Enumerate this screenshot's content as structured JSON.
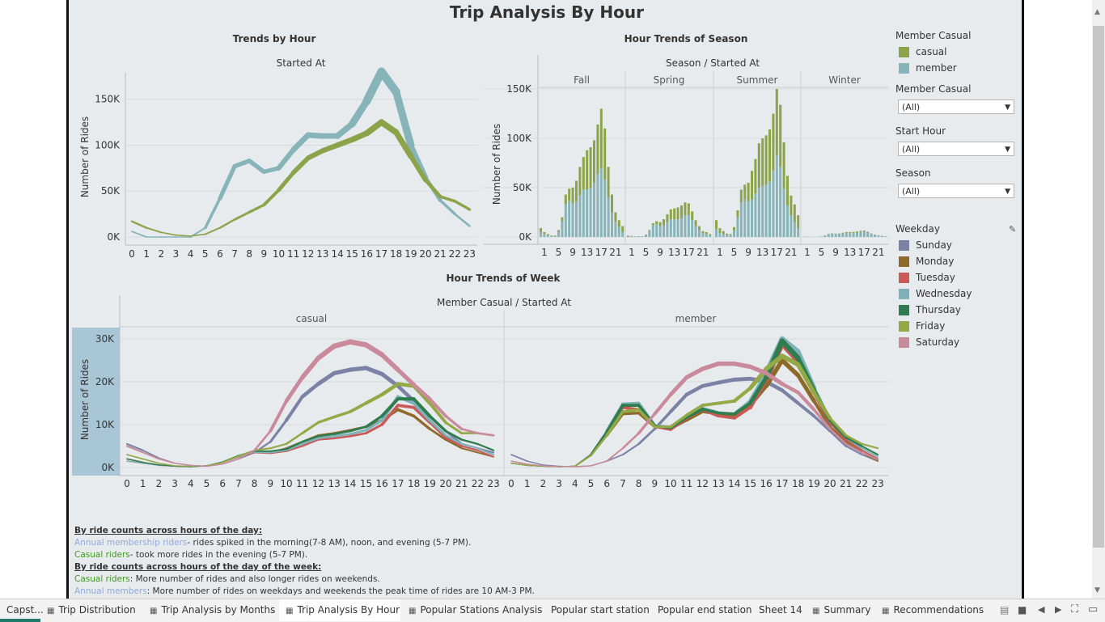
{
  "title": "Trip Analysis By Hour",
  "colors": {
    "casual": "#8da34a",
    "member": "#86b4b9",
    "bg": "#e8ebee"
  },
  "chart_data": [
    {
      "type": "line",
      "title": "Trends by Hour",
      "xlabel": "Started At",
      "ylabel": "Number of Rides",
      "x": [
        0,
        1,
        2,
        3,
        4,
        5,
        6,
        7,
        8,
        9,
        10,
        11,
        12,
        13,
        14,
        15,
        16,
        17,
        18,
        19,
        20,
        21,
        22,
        23
      ],
      "ylim": [
        0,
        185000
      ],
      "yticks": [
        "0K",
        "50K",
        "100K",
        "150K"
      ],
      "series": [
        {
          "name": "member",
          "values": [
            6000,
            0,
            0,
            0,
            0,
            10000,
            42000,
            77000,
            83000,
            71000,
            75000,
            95000,
            111000,
            110000,
            110000,
            123000,
            148000,
            180000,
            158000,
            100000,
            65000,
            40000,
            25000,
            12000
          ]
        },
        {
          "name": "casual",
          "values": [
            17000,
            10000,
            5000,
            2000,
            1000,
            3000,
            10000,
            19000,
            27000,
            35000,
            51000,
            70000,
            86000,
            94000,
            100000,
            106000,
            113000,
            125000,
            114000,
            88000,
            62000,
            44000,
            39000,
            30000
          ]
        }
      ]
    },
    {
      "type": "bar",
      "title": "Hour Trends of Season",
      "header": "Season / Started At",
      "ylabel": "Number of Rides",
      "ylim": [
        0,
        150000
      ],
      "yticks": [
        "0K",
        "50K",
        "100K",
        "150K"
      ],
      "panels": [
        {
          "name": "Fall",
          "member": [
            5000,
            3000,
            2000,
            1000,
            1000,
            5000,
            16000,
            33000,
            37000,
            34000,
            36000,
            42000,
            48000,
            48000,
            50000,
            55000,
            64000,
            70000,
            58000,
            40000,
            25000,
            15000,
            10000,
            5000
          ],
          "casual": [
            4000,
            2000,
            1000,
            500,
            500,
            2000,
            4000,
            10000,
            12000,
            16000,
            21000,
            29000,
            33000,
            40000,
            41000,
            43000,
            50000,
            60000,
            52000,
            31000,
            18000,
            10000,
            7000,
            6000
          ]
        },
        {
          "name": "Spring",
          "member": [
            1000,
            500,
            500,
            500,
            500,
            2000,
            6000,
            12000,
            13000,
            11000,
            12000,
            15000,
            18000,
            18000,
            18000,
            19000,
            22000,
            22000,
            17000,
            11000,
            7000,
            4000,
            3000,
            2000
          ],
          "casual": [
            500,
            500,
            200,
            200,
            200,
            500,
            1000,
            2000,
            3000,
            4000,
            6000,
            8000,
            10000,
            11000,
            12000,
            13000,
            13000,
            12000,
            9000,
            6000,
            4000,
            2000,
            2000,
            1000
          ]
        },
        {
          "name": "Summer",
          "member": [
            8000,
            4000,
            3000,
            2000,
            2000,
            7000,
            20000,
            35000,
            38000,
            36000,
            38000,
            44000,
            50000,
            52000,
            53000,
            56000,
            67000,
            83000,
            71000,
            49000,
            32000,
            22000,
            15000,
            9000
          ],
          "casual": [
            9000,
            5000,
            3000,
            1500,
            1000,
            3000,
            7000,
            13000,
            15000,
            19000,
            29000,
            35000,
            45000,
            48000,
            50000,
            53000,
            58000,
            67000,
            63000,
            47000,
            30000,
            20000,
            18000,
            13000
          ]
        },
        {
          "name": "Winter",
          "member": [
            300,
            200,
            100,
            100,
            100,
            500,
            1500,
            3000,
            3500,
            3000,
            3000,
            3500,
            4000,
            4000,
            4000,
            4500,
            5000,
            5500,
            4500,
            3000,
            2000,
            1500,
            1000,
            600
          ],
          "casual": [
            100,
            50,
            50,
            50,
            50,
            50,
            100,
            200,
            300,
            400,
            600,
            800,
            1000,
            1000,
            1100,
            1100,
            1200,
            1000,
            800,
            600,
            400,
            300,
            200,
            150
          ]
        }
      ],
      "tick_labels": [
        "1",
        "5",
        "9",
        "13",
        "17",
        "21"
      ]
    },
    {
      "type": "line",
      "title": "Hour Trends of Week",
      "header": "Member Casual / Started At",
      "ylabel": "Number of Rides",
      "x": [
        0,
        1,
        2,
        3,
        4,
        5,
        6,
        7,
        8,
        9,
        10,
        11,
        12,
        13,
        14,
        15,
        16,
        17,
        18,
        19,
        20,
        21,
        22,
        23
      ],
      "ylim": [
        0,
        31500
      ],
      "yticks": [
        "0K",
        "10K",
        "20K",
        "30K"
      ],
      "panels": [
        {
          "name": "casual",
          "series": [
            {
              "name": "Sunday",
              "values": [
                5500,
                4000,
                2200,
                1000,
                500,
                300,
                800,
                2000,
                3500,
                6000,
                11000,
                16500,
                19500,
                22000,
                22800,
                23200,
                21800,
                19000,
                15500,
                12000,
                8500,
                5500,
                4500,
                3500
              ]
            },
            {
              "name": "Monday",
              "values": [
                2000,
                1200,
                600,
                300,
                200,
                400,
                1200,
                2500,
                3500,
                3500,
                4500,
                6000,
                7500,
                8000,
                8700,
                9500,
                11000,
                13500,
                12000,
                9000,
                6500,
                4500,
                3500,
                2500
              ]
            },
            {
              "name": "Tuesday",
              "values": [
                1500,
                1000,
                500,
                300,
                200,
                400,
                1200,
                2500,
                3500,
                3300,
                3800,
                5000,
                6500,
                6800,
                7300,
                8000,
                10000,
                14500,
                14000,
                10500,
                7000,
                5000,
                4000,
                2500
              ]
            },
            {
              "name": "Wednesday",
              "values": [
                1500,
                1000,
                500,
                300,
                200,
                400,
                1200,
                2600,
                3600,
                3500,
                4000,
                5500,
                6800,
                7300,
                7800,
                8700,
                11000,
                16500,
                15000,
                11000,
                7500,
                5500,
                4500,
                3000
              ]
            },
            {
              "name": "Thursday",
              "values": [
                2000,
                1200,
                600,
                300,
                200,
                400,
                1300,
                2800,
                3800,
                3800,
                4300,
                6000,
                7300,
                7800,
                8500,
                9500,
                12000,
                16000,
                16000,
                12000,
                8500,
                6500,
                5500,
                4000
              ]
            },
            {
              "name": "Friday",
              "values": [
                3000,
                2000,
                1000,
                400,
                300,
                400,
                1200,
                2700,
                4000,
                4500,
                5500,
                8000,
                10500,
                11800,
                13000,
                15000,
                17000,
                19500,
                19000,
                15000,
                10500,
                8000,
                8000,
                7500
              ]
            },
            {
              "name": "Saturday",
              "values": [
                5000,
                3500,
                2000,
                1000,
                500,
                300,
                800,
                2000,
                4000,
                8500,
                15500,
                21000,
                25500,
                28300,
                29300,
                28600,
                26300,
                22800,
                19300,
                16000,
                12000,
                9000,
                8000,
                7500
              ]
            }
          ]
        },
        {
          "name": "member",
          "series": [
            {
              "name": "Sunday",
              "values": [
                3000,
                1500,
                600,
                300,
                200,
                400,
                1500,
                3000,
                5500,
                9000,
                13000,
                17000,
                19000,
                19800,
                20500,
                20700,
                20000,
                18000,
                15000,
                12000,
                8500,
                5000,
                3000,
                1500
              ]
            },
            {
              "name": "Monday",
              "values": [
                1000,
                500,
                300,
                200,
                300,
                2800,
                7500,
                12500,
                12700,
                9500,
                9000,
                11000,
                13000,
                12500,
                12000,
                14500,
                19000,
                25000,
                21500,
                15500,
                9500,
                6000,
                3500,
                1500
              ]
            },
            {
              "name": "Tuesday",
              "values": [
                1000,
                500,
                300,
                200,
                300,
                3000,
                8000,
                14000,
                13500,
                9500,
                8800,
                11500,
                13500,
                12000,
                11500,
                14000,
                20500,
                28800,
                24800,
                17500,
                10500,
                6500,
                4000,
                2000
              ]
            },
            {
              "name": "Wednesday",
              "values": [
                1000,
                500,
                300,
                200,
                300,
                3000,
                8500,
                14800,
                15000,
                9800,
                9500,
                12000,
                13800,
                12800,
                12500,
                15500,
                22000,
                30000,
                27000,
                18500,
                11000,
                7000,
                4500,
                2500
              ]
            },
            {
              "name": "Thursday",
              "values": [
                1000,
                500,
                300,
                200,
                300,
                3000,
                8300,
                14500,
                14500,
                9700,
                9200,
                11700,
                13600,
                12700,
                12500,
                15000,
                21000,
                29500,
                25500,
                18000,
                11000,
                7000,
                5000,
                3000
              ]
            },
            {
              "name": "Friday",
              "values": [
                1000,
                500,
                300,
                200,
                300,
                2800,
                7500,
                13000,
                13500,
                9500,
                9500,
                12200,
                14500,
                15000,
                15500,
                18500,
                23000,
                26000,
                24000,
                17500,
                11500,
                7500,
                5500,
                4500
              ]
            },
            {
              "name": "Saturday",
              "values": [
                1500,
                800,
                400,
                200,
                200,
                400,
                1500,
                4500,
                8000,
                12500,
                17000,
                21000,
                23000,
                24200,
                24200,
                23500,
                22000,
                19500,
                17500,
                13500,
                9000,
                5500,
                3500,
                1800
              ]
            }
          ]
        }
      ]
    }
  ],
  "sidebar": {
    "member_casual_legend_title": "Member Casual",
    "legend": [
      {
        "label": "casual",
        "color": "#8da34a"
      },
      {
        "label": "member",
        "color": "#86b4b9"
      }
    ],
    "filters": [
      {
        "label": "Member Casual",
        "value": "(All)"
      },
      {
        "label": "Start Hour",
        "value": "(All)"
      },
      {
        "label": "Season",
        "value": "(All)"
      }
    ],
    "weekday_title": "Weekday",
    "weekday_legend": [
      {
        "label": "Sunday",
        "color": "#7b82a6"
      },
      {
        "label": "Monday",
        "color": "#8e6a2a"
      },
      {
        "label": "Tuesday",
        "color": "#c95a57"
      },
      {
        "label": "Wednesday",
        "color": "#7fb2b8"
      },
      {
        "label": "Thursday",
        "color": "#2f7d4e"
      },
      {
        "label": "Friday",
        "color": "#94a845"
      },
      {
        "label": "Saturday",
        "color": "#c98a9b"
      }
    ]
  },
  "notes": {
    "h1": "By ride counts across hours of the day:",
    "l1a": "Annual membership riders",
    "l1b": "- rides spiked in the morning(7-8 AM), noon, and evening (5-7 PM).",
    "l2a": "Casual riders",
    "l2b": "- took more rides in the evening (5-7 PM).",
    "h2": "By ride counts across hours of the day of the week:",
    "l3a": "Casual riders",
    "l3b": ": More number of rides and also longer rides on weekends.",
    "l4a": "Annual members",
    "l4b": ": More number of rides on weekdays and weekends the peak time of rides are 10 AM-3 PM."
  },
  "tabs": [
    {
      "label": "Capst...",
      "icon": ""
    },
    {
      "label": "Trip Distribution",
      "icon": "▦"
    },
    {
      "label": "Trip Analysis by Months",
      "icon": "▦"
    },
    {
      "label": "Trip Analysis By Hour",
      "icon": "▦",
      "active": true
    },
    {
      "label": "Popular Stations Analysis",
      "icon": "▦"
    },
    {
      "label": "Popular start station",
      "icon": ""
    },
    {
      "label": "Popular end station",
      "icon": ""
    },
    {
      "label": "Sheet 14",
      "icon": ""
    },
    {
      "label": "Summary",
      "icon": "▦"
    },
    {
      "label": "Recommendations",
      "icon": "▦"
    }
  ]
}
